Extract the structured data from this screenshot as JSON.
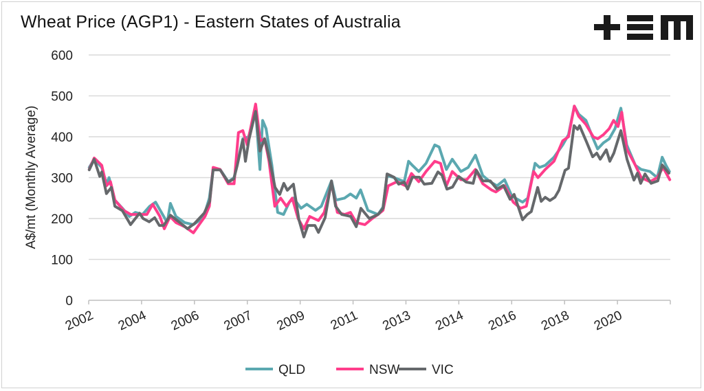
{
  "title": "Wheat Price (AGP1) - Eastern States of Australia",
  "logo": {
    "text": "+EM"
  },
  "colors": {
    "QLD": "#5ba8b0",
    "NSW": "#ff3d8b",
    "VIC": "#65686b",
    "grid": "#d9d9d9"
  },
  "chart_data": {
    "type": "line",
    "title": "Wheat Price (AGP1) - Eastern States of Australia",
    "ylabel": "A$/mt (Monthly Average)",
    "xlabel": "",
    "ylim": [
      0,
      600
    ],
    "yticks": [
      0,
      100,
      200,
      300,
      400,
      500,
      600
    ],
    "xlim": [
      2002,
      2022
    ],
    "xtick_labels": [
      "2002",
      "2004",
      "2006",
      "2007",
      "2009",
      "2011",
      "2013",
      "2014",
      "2016",
      "2018",
      "2020"
    ],
    "grid": true,
    "legend": "bottom",
    "series": [
      {
        "name": "QLD",
        "points": [
          [
            2002.02,
            325
          ],
          [
            2002.19,
            345
          ],
          [
            2002.45,
            325
          ],
          [
            2002.61,
            285
          ],
          [
            2002.7,
            300
          ],
          [
            2002.9,
            245
          ],
          [
            2003.16,
            225
          ],
          [
            2003.4,
            205
          ],
          [
            2003.6,
            215
          ],
          [
            2003.85,
            210
          ],
          [
            2004.1,
            230
          ],
          [
            2004.3,
            240
          ],
          [
            2004.5,
            215
          ],
          [
            2004.7,
            190
          ],
          [
            2004.81,
            237
          ],
          [
            2005.0,
            205
          ],
          [
            2005.3,
            190
          ],
          [
            2005.6,
            185
          ],
          [
            2005.8,
            195
          ],
          [
            2006.0,
            215
          ],
          [
            2006.15,
            250
          ],
          [
            2006.28,
            320
          ],
          [
            2006.52,
            320
          ],
          [
            2006.8,
            290
          ],
          [
            2007.0,
            300
          ],
          [
            2007.1,
            330
          ],
          [
            2007.3,
            395
          ],
          [
            2007.5,
            400
          ],
          [
            2007.74,
            465
          ],
          [
            2007.89,
            320
          ],
          [
            2007.98,
            440
          ],
          [
            2008.1,
            420
          ],
          [
            2008.3,
            330
          ],
          [
            2008.5,
            215
          ],
          [
            2008.7,
            210
          ],
          [
            2008.9,
            240
          ],
          [
            2009.04,
            250
          ],
          [
            2009.3,
            225
          ],
          [
            2009.5,
            235
          ],
          [
            2009.8,
            220
          ],
          [
            2010.0,
            230
          ],
          [
            2010.35,
            292
          ],
          [
            2010.5,
            245
          ],
          [
            2010.8,
            250
          ],
          [
            2011.0,
            260
          ],
          [
            2011.2,
            250
          ],
          [
            2011.35,
            270
          ],
          [
            2011.6,
            220
          ],
          [
            2011.95,
            210
          ],
          [
            2012.12,
            228
          ],
          [
            2012.26,
            305
          ],
          [
            2012.5,
            300
          ],
          [
            2012.85,
            290
          ],
          [
            2013.0,
            340
          ],
          [
            2013.13,
            330
          ],
          [
            2013.35,
            315
          ],
          [
            2013.6,
            335
          ],
          [
            2013.9,
            380
          ],
          [
            2014.05,
            375
          ],
          [
            2014.3,
            320
          ],
          [
            2014.5,
            345
          ],
          [
            2014.8,
            315
          ],
          [
            2015.05,
            325
          ],
          [
            2015.3,
            355
          ],
          [
            2015.55,
            305
          ],
          [
            2015.8,
            290
          ],
          [
            2016.04,
            280
          ],
          [
            2016.3,
            295
          ],
          [
            2016.55,
            255
          ],
          [
            2016.92,
            240
          ],
          [
            2017.1,
            250
          ],
          [
            2017.35,
            335
          ],
          [
            2017.5,
            325
          ],
          [
            2017.7,
            330
          ],
          [
            2018.0,
            350
          ],
          [
            2018.3,
            380
          ],
          [
            2018.5,
            405
          ],
          [
            2018.7,
            475
          ],
          [
            2018.85,
            455
          ],
          [
            2019.1,
            440
          ],
          [
            2019.35,
            395
          ],
          [
            2019.5,
            370
          ],
          [
            2019.7,
            385
          ],
          [
            2019.9,
            395
          ],
          [
            2020.1,
            420
          ],
          [
            2020.3,
            470
          ],
          [
            2020.5,
            380
          ],
          [
            2020.8,
            330
          ],
          [
            2021.0,
            320
          ],
          [
            2021.3,
            315
          ],
          [
            2021.55,
            300
          ],
          [
            2021.72,
            350
          ],
          [
            2021.85,
            330
          ],
          [
            2021.97,
            315
          ]
        ]
      },
      {
        "name": "NSW",
        "points": [
          [
            2002.02,
            320
          ],
          [
            2002.19,
            348
          ],
          [
            2002.45,
            330
          ],
          [
            2002.61,
            280
          ],
          [
            2002.75,
            290
          ],
          [
            2002.9,
            245
          ],
          [
            2003.2,
            220
          ],
          [
            2003.45,
            210
          ],
          [
            2003.7,
            210
          ],
          [
            2004.0,
            210
          ],
          [
            2004.2,
            235
          ],
          [
            2004.45,
            205
          ],
          [
            2004.6,
            175
          ],
          [
            2004.8,
            205
          ],
          [
            2005.0,
            190
          ],
          [
            2005.3,
            180
          ],
          [
            2005.6,
            165
          ],
          [
            2005.8,
            185
          ],
          [
            2006.0,
            205
          ],
          [
            2006.15,
            230
          ],
          [
            2006.28,
            325
          ],
          [
            2006.52,
            320
          ],
          [
            2006.8,
            285
          ],
          [
            2007.0,
            285
          ],
          [
            2007.15,
            410
          ],
          [
            2007.3,
            415
          ],
          [
            2007.45,
            380
          ],
          [
            2007.74,
            480
          ],
          [
            2007.9,
            390
          ],
          [
            2008.05,
            395
          ],
          [
            2008.2,
            340
          ],
          [
            2008.4,
            230
          ],
          [
            2008.6,
            250
          ],
          [
            2008.8,
            230
          ],
          [
            2009.0,
            250
          ],
          [
            2009.2,
            200
          ],
          [
            2009.4,
            175
          ],
          [
            2009.6,
            205
          ],
          [
            2009.9,
            195
          ],
          [
            2010.1,
            215
          ],
          [
            2010.35,
            285
          ],
          [
            2010.55,
            215
          ],
          [
            2010.8,
            210
          ],
          [
            2011.0,
            215
          ],
          [
            2011.2,
            190
          ],
          [
            2011.5,
            185
          ],
          [
            2011.75,
            200
          ],
          [
            2011.95,
            210
          ],
          [
            2012.12,
            220
          ],
          [
            2012.3,
            280
          ],
          [
            2012.6,
            290
          ],
          [
            2012.9,
            280
          ],
          [
            2013.1,
            310
          ],
          [
            2013.35,
            290
          ],
          [
            2013.6,
            315
          ],
          [
            2013.9,
            340
          ],
          [
            2014.1,
            335
          ],
          [
            2014.3,
            280
          ],
          [
            2014.5,
            315
          ],
          [
            2014.8,
            295
          ],
          [
            2015.0,
            295
          ],
          [
            2015.3,
            320
          ],
          [
            2015.55,
            285
          ],
          [
            2015.85,
            270
          ],
          [
            2016.0,
            265
          ],
          [
            2016.3,
            280
          ],
          [
            2016.6,
            240
          ],
          [
            2016.85,
            225
          ],
          [
            2017.05,
            230
          ],
          [
            2017.3,
            315
          ],
          [
            2017.45,
            300
          ],
          [
            2017.7,
            320
          ],
          [
            2018.0,
            340
          ],
          [
            2018.3,
            390
          ],
          [
            2018.5,
            400
          ],
          [
            2018.7,
            475
          ],
          [
            2018.85,
            450
          ],
          [
            2019.1,
            430
          ],
          [
            2019.35,
            400
          ],
          [
            2019.5,
            395
          ],
          [
            2019.7,
            405
          ],
          [
            2019.9,
            420
          ],
          [
            2020.05,
            440
          ],
          [
            2020.2,
            425
          ],
          [
            2020.33,
            460
          ],
          [
            2020.5,
            370
          ],
          [
            2020.8,
            330
          ],
          [
            2021.0,
            300
          ],
          [
            2021.3,
            290
          ],
          [
            2021.55,
            300
          ],
          [
            2021.75,
            325
          ],
          [
            2021.98,
            295
          ]
        ]
      },
      {
        "name": "VIC",
        "points": [
          [
            2002.02,
            319
          ],
          [
            2002.19,
            345
          ],
          [
            2002.38,
            303
          ],
          [
            2002.45,
            314
          ],
          [
            2002.61,
            261
          ],
          [
            2002.78,
            276
          ],
          [
            2002.9,
            230
          ],
          [
            2003.16,
            219
          ],
          [
            2003.44,
            185
          ],
          [
            2003.75,
            213
          ],
          [
            2003.87,
            200
          ],
          [
            2004.08,
            192
          ],
          [
            2004.27,
            202
          ],
          [
            2004.43,
            183
          ],
          [
            2004.58,
            183
          ],
          [
            2004.81,
            208
          ],
          [
            2005.17,
            188
          ],
          [
            2005.4,
            175
          ],
          [
            2005.64,
            188
          ],
          [
            2005.97,
            213
          ],
          [
            2006.16,
            242
          ],
          [
            2006.28,
            319
          ],
          [
            2006.52,
            319
          ],
          [
            2006.8,
            289
          ],
          [
            2006.99,
            297
          ],
          [
            2007.11,
            331
          ],
          [
            2007.3,
            393
          ],
          [
            2007.39,
            340
          ],
          [
            2007.51,
            393
          ],
          [
            2007.74,
            462
          ],
          [
            2007.89,
            365
          ],
          [
            2008.05,
            395
          ],
          [
            2008.17,
            360
          ],
          [
            2008.41,
            276
          ],
          [
            2008.57,
            259
          ],
          [
            2008.71,
            286
          ],
          [
            2008.83,
            269
          ],
          [
            2009.04,
            284
          ],
          [
            2009.23,
            197
          ],
          [
            2009.4,
            155
          ],
          [
            2009.54,
            183
          ],
          [
            2009.78,
            183
          ],
          [
            2009.9,
            166
          ],
          [
            2010.13,
            202
          ],
          [
            2010.35,
            292
          ],
          [
            2010.49,
            230
          ],
          [
            2010.7,
            210
          ],
          [
            2011.01,
            205
          ],
          [
            2011.2,
            180
          ],
          [
            2011.36,
            225
          ],
          [
            2011.65,
            200
          ],
          [
            2011.95,
            210
          ],
          [
            2012.12,
            225
          ],
          [
            2012.26,
            309
          ],
          [
            2012.5,
            301
          ],
          [
            2012.66,
            284
          ],
          [
            2012.85,
            289
          ],
          [
            2012.97,
            272
          ],
          [
            2013.13,
            301
          ],
          [
            2013.37,
            301
          ],
          [
            2013.54,
            284
          ],
          [
            2013.8,
            286
          ],
          [
            2014.01,
            314
          ],
          [
            2014.15,
            306
          ],
          [
            2014.32,
            272
          ],
          [
            2014.51,
            277
          ],
          [
            2014.72,
            303
          ],
          [
            2014.98,
            289
          ],
          [
            2015.22,
            286
          ],
          [
            2015.33,
            318
          ],
          [
            2015.55,
            292
          ],
          [
            2015.81,
            292
          ],
          [
            2016.04,
            272
          ],
          [
            2016.26,
            281
          ],
          [
            2016.49,
            247
          ],
          [
            2016.63,
            259
          ],
          [
            2016.92,
            197
          ],
          [
            2017.08,
            210
          ],
          [
            2017.22,
            217
          ],
          [
            2017.44,
            276
          ],
          [
            2017.56,
            242
          ],
          [
            2017.7,
            252
          ],
          [
            2017.86,
            244
          ],
          [
            2018.03,
            252
          ],
          [
            2018.17,
            269
          ],
          [
            2018.38,
            318
          ],
          [
            2018.5,
            323
          ],
          [
            2018.69,
            427
          ],
          [
            2018.81,
            418
          ],
          [
            2018.88,
            427
          ],
          [
            2019.12,
            387
          ],
          [
            2019.33,
            351
          ],
          [
            2019.47,
            360
          ],
          [
            2019.59,
            345
          ],
          [
            2019.8,
            368
          ],
          [
            2019.92,
            340
          ],
          [
            2020.06,
            360
          ],
          [
            2020.3,
            415
          ],
          [
            2020.51,
            345
          ],
          [
            2020.75,
            294
          ],
          [
            2020.87,
            311
          ],
          [
            2020.98,
            286
          ],
          [
            2021.13,
            309
          ],
          [
            2021.34,
            286
          ],
          [
            2021.57,
            292
          ],
          [
            2021.72,
            331
          ],
          [
            2021.95,
            311
          ]
        ]
      }
    ]
  }
}
